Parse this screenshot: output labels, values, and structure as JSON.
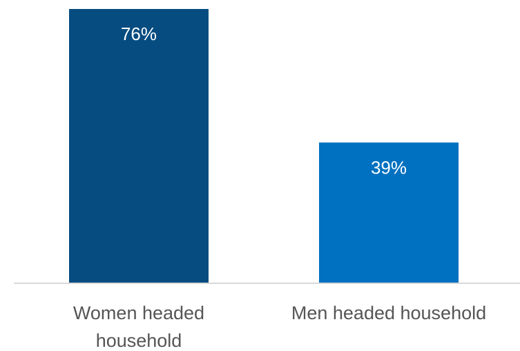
{
  "chart_data": {
    "type": "bar",
    "categories": [
      "Women headed household",
      "Men headed household"
    ],
    "category_label_lines": [
      [
        "Women headed",
        "household"
      ],
      [
        "Men headed household"
      ]
    ],
    "values": [
      76,
      39
    ],
    "value_labels": [
      "76%",
      "39%"
    ],
    "bar_colors": [
      "#064c80",
      "#0070c0"
    ],
    "axis_color": "#d9d9d9",
    "ylim": [
      0,
      76
    ],
    "grid": false,
    "legend": "none"
  }
}
